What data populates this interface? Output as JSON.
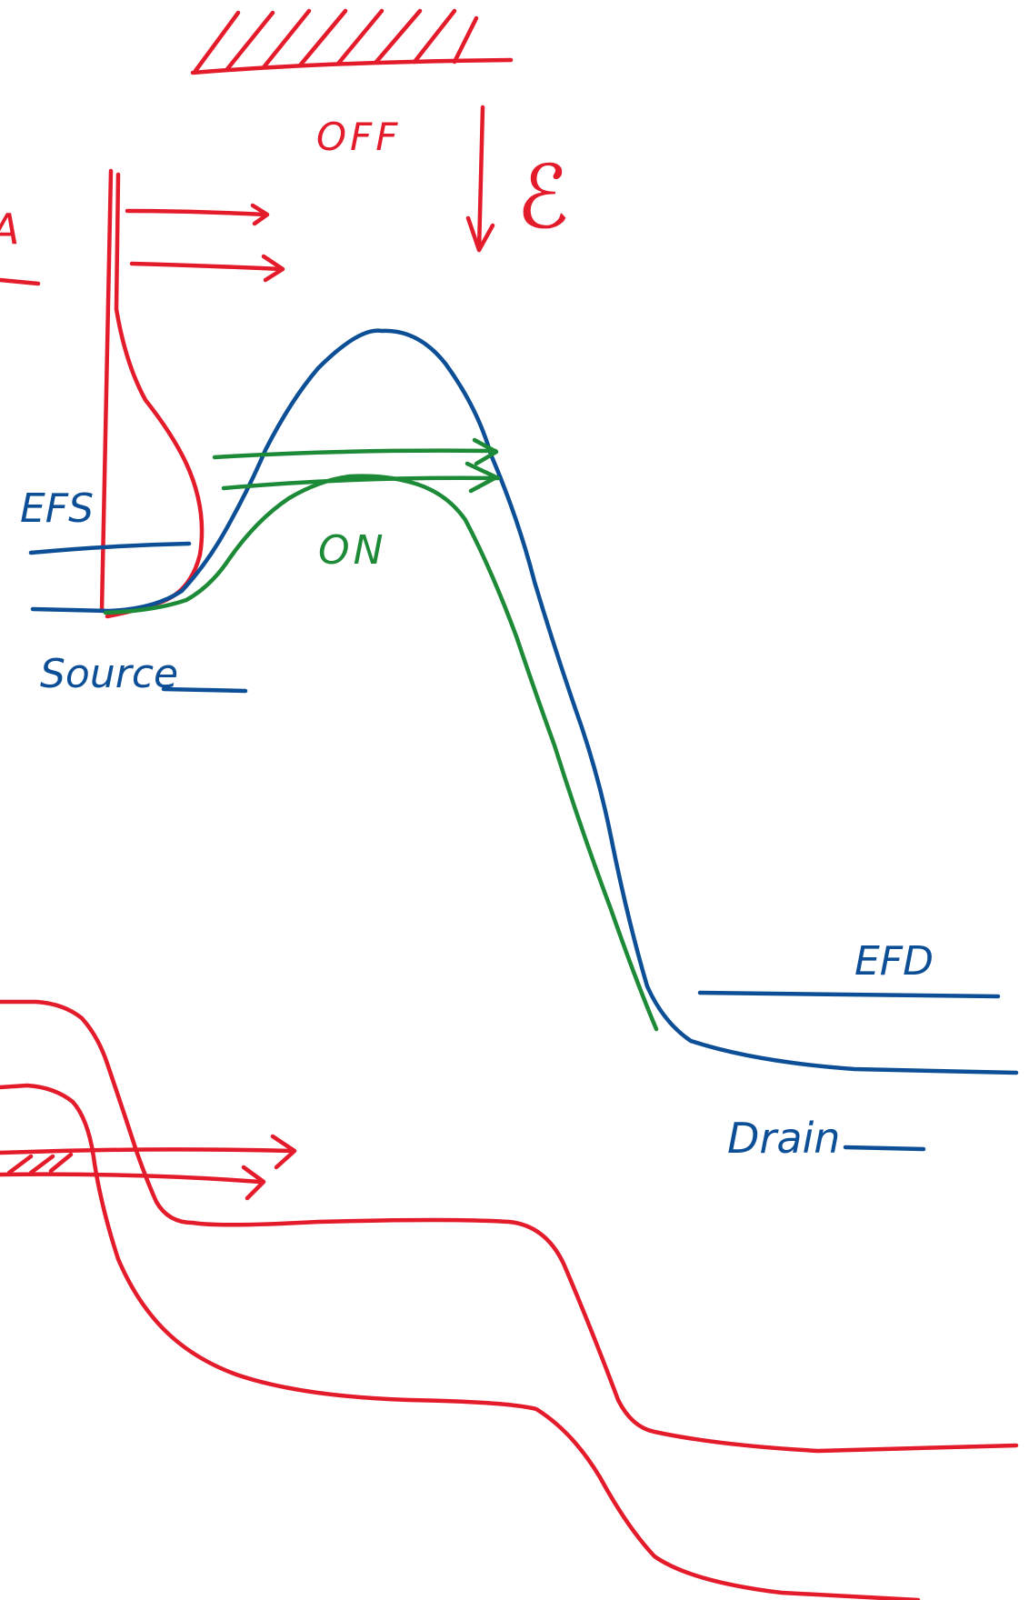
{
  "colors": {
    "red": "#e31b2b",
    "blue": "#0d4f96",
    "green": "#1c8a36",
    "background": "#ffffff"
  },
  "labels": {
    "off": "OFF",
    "field": "ℰ",
    "efs": "EFS",
    "on": "ON",
    "source": "Source",
    "efd": "EFD",
    "drain": "Drain",
    "edge_fragment": "A"
  }
}
